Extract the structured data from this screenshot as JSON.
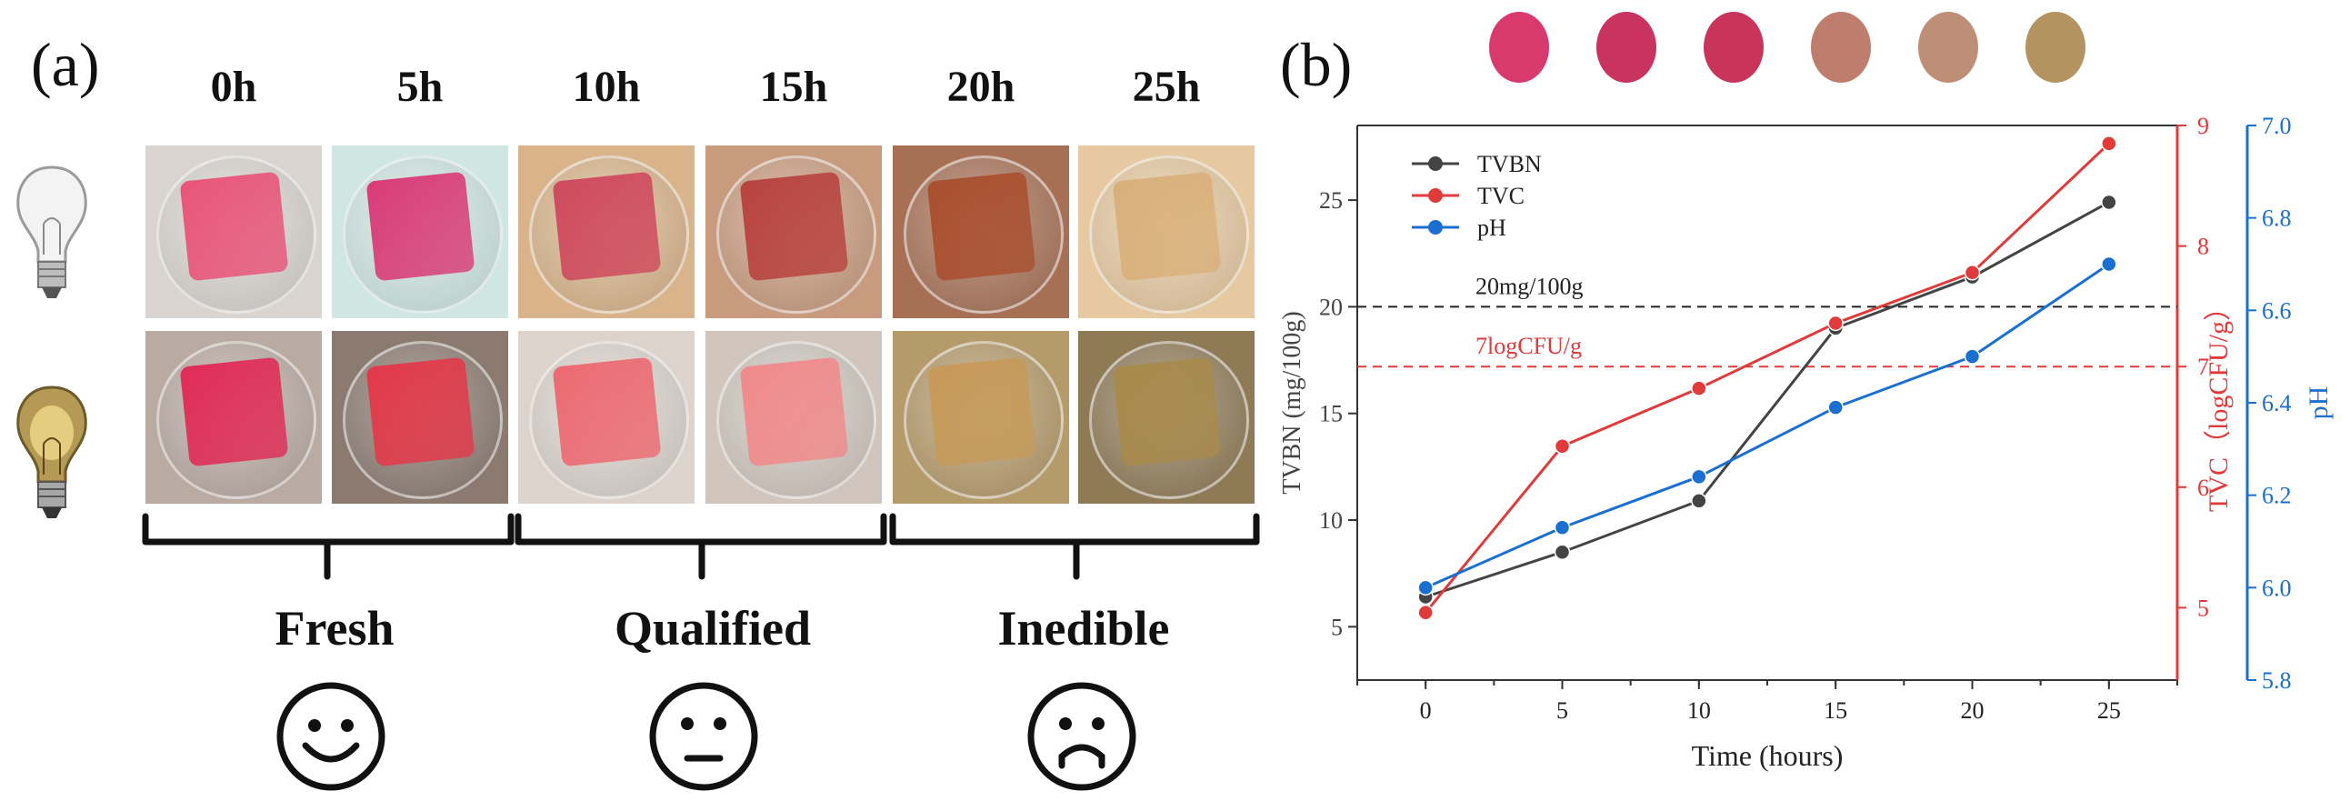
{
  "panel_a": {
    "label": "(a)",
    "time_labels": [
      "0h",
      "5h",
      "10h",
      "15h",
      "20h",
      "25h"
    ],
    "stages": [
      "Fresh",
      "Qualified",
      "Inedible"
    ],
    "face_icons": [
      "happy-face-icon",
      "neutral-face-icon",
      "sad-face-icon"
    ],
    "bulb_icons": [
      "light-bulb-off-icon",
      "light-bulb-on-icon"
    ],
    "film_colors_top": [
      "#e8557a",
      "#d93c78",
      "#cf4a5e",
      "#b8433f",
      "#a9502f",
      "#d9b07a"
    ],
    "film_colors_bottom": [
      "#e02c58",
      "#e23a4a",
      "#ec6a72",
      "#f08a8c",
      "#c69a5a",
      "#a78a4c"
    ],
    "background_colors_top": [
      "#d9d4cf",
      "#cfe6e2",
      "#d9b48a",
      "#c99b7e",
      "#a77055",
      "#e6c9a0"
    ],
    "background_colors_bottom": [
      "#b9aaa2",
      "#8a7a70",
      "#dcd3cc",
      "#d0c6be",
      "#b59a6a",
      "#8f7a56"
    ]
  },
  "chart_data": {
    "type": "line",
    "panel_label": "(b)",
    "color_swatches": [
      "#d93a6e",
      "#c9335f",
      "#c8345a",
      "#bf7d6e",
      "#be8e76",
      "#b3935f"
    ],
    "x": [
      0,
      5,
      10,
      15,
      20,
      25
    ],
    "xlabel": "Time (hours)",
    "xlim": [
      -2.5,
      27.5
    ],
    "x_ticks": [
      "0",
      "5",
      "10",
      "15",
      "20",
      "25"
    ],
    "series": [
      {
        "name": "TVBN",
        "axis": "left",
        "color": "#444444",
        "values": [
          6.4,
          8.5,
          10.9,
          19.0,
          21.4,
          24.9
        ]
      },
      {
        "name": "TVC",
        "axis": "right1",
        "color": "#e03a3a",
        "values": [
          4.96,
          6.34,
          6.82,
          7.36,
          7.78,
          8.85
        ]
      },
      {
        "name": "pH",
        "axis": "right2",
        "color": "#1a6fd1",
        "values": [
          6.0,
          6.13,
          6.24,
          6.39,
          6.5,
          6.7
        ]
      }
    ],
    "left_axis": {
      "label": "TVBN (mg/100g)",
      "ylim": [
        2.5,
        28.5
      ],
      "ticks": [
        "5",
        "10",
        "15",
        "20",
        "25"
      ],
      "color": "#444444"
    },
    "right_axis_1": {
      "label": "TVC（logCFU/g）",
      "ylim": [
        4.4,
        9.0
      ],
      "ticks": [
        "5",
        "6",
        "7",
        "8",
        "9"
      ],
      "color": "#e03a3a"
    },
    "right_axis_2": {
      "label": "pH",
      "ylim": [
        5.8,
        7.0
      ],
      "ticks": [
        "5.8",
        "6.0",
        "6.2",
        "6.4",
        "6.6",
        "6.8",
        "7.0"
      ],
      "color": "#1a6fd1"
    },
    "reference_lines": [
      {
        "label": "20mg/100g",
        "axis": "left",
        "value": 20,
        "color": "#222222"
      },
      {
        "label": "7logCFU/g",
        "axis": "right1",
        "value": 7.0,
        "color": "#e03a3a"
      }
    ],
    "legend": {
      "position": "top-left",
      "entries": [
        "TVBN",
        "TVC",
        "pH"
      ]
    }
  }
}
